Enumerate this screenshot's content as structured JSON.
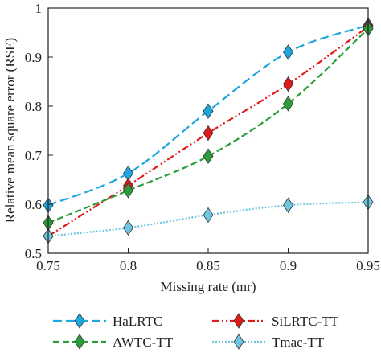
{
  "chart_data": {
    "type": "line",
    "xlabel": "Missing rate (mr)",
    "ylabel": "Relative mean square error (RSE)",
    "xlim": [
      0.75,
      0.95
    ],
    "ylim": [
      0.5,
      1.0
    ],
    "x": [
      0.75,
      0.8,
      0.85,
      0.9,
      0.95
    ],
    "x_ticks": [
      "0.75",
      "0.8",
      "0.85",
      "0.9",
      "0.95"
    ],
    "y_ticks": [
      "0.5",
      "0.6",
      "0.7",
      "0.8",
      "0.9",
      "1"
    ],
    "grid": false,
    "legend_position": "bottom",
    "series": [
      {
        "name": "HaLRTC",
        "color": "#1ea6e0",
        "dash": "long-dash",
        "marker": "diamond",
        "values": [
          0.598,
          0.663,
          0.79,
          0.91,
          0.965
        ]
      },
      {
        "name": "SiLRTC-TT",
        "color": "#e01919",
        "dash": "dash-dot-dot",
        "marker": "diamond",
        "values": [
          0.535,
          0.638,
          0.745,
          0.845,
          0.962
        ]
      },
      {
        "name": "AWTC-TT",
        "color": "#2a9d3a",
        "dash": "dashed",
        "marker": "diamond",
        "values": [
          0.562,
          0.628,
          0.698,
          0.805,
          0.958
        ]
      },
      {
        "name": "Tmac-TT",
        "color": "#6fc6e0",
        "dash": "dotted",
        "marker": "diamond",
        "values": [
          0.535,
          0.552,
          0.578,
          0.598,
          0.604
        ]
      }
    ]
  }
}
